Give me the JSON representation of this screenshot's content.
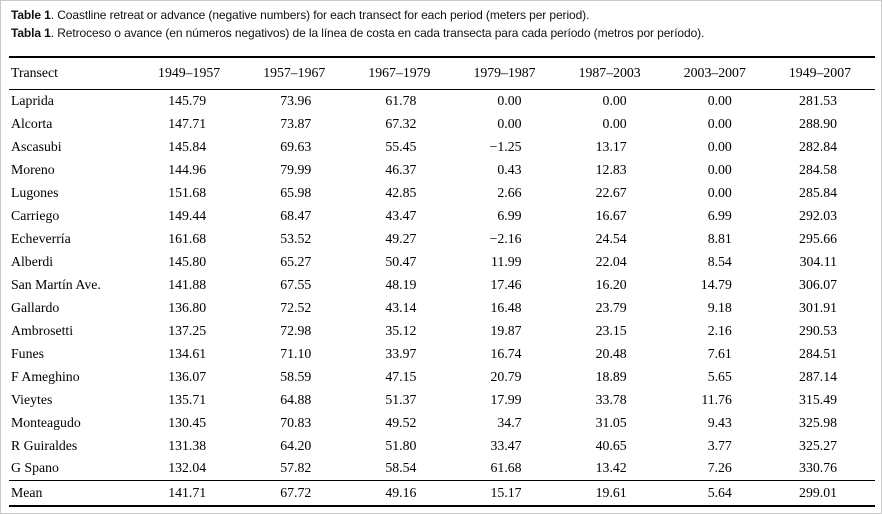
{
  "caption": {
    "en_label": "Table 1",
    "en_text": ". Coastline retreat or advance (negative numbers) for each transect for each period (meters per period).",
    "es_label": "Tabla 1",
    "es_text": ". Retroceso o avance (en números negativos) de la línea de costa en cada transecta para cada período (metros por período)."
  },
  "colors": {
    "text": "#1a1a1a",
    "rule": "#000000",
    "background": "#ffffff",
    "page_border": "#c9c9c9"
  },
  "chart_data": {
    "type": "table",
    "title": "Coastline retreat or advance (negative numbers) for each transect for each period (meters per period)",
    "columns": [
      "Transect",
      "1949–1957",
      "1957–1967",
      "1967–1979",
      "1979–1987",
      "1987–2003",
      "2003–2007",
      "1949–2007"
    ],
    "rows": [
      {
        "name": "Laprida",
        "values": [
          "145.79",
          "73.96",
          "61.78",
          "0.00",
          "0.00",
          "0.00",
          "281.53"
        ]
      },
      {
        "name": "Alcorta",
        "values": [
          "147.71",
          "73.87",
          "67.32",
          "0.00",
          "0.00",
          "0.00",
          "288.90"
        ]
      },
      {
        "name": "Ascasubi",
        "values": [
          "145.84",
          "69.63",
          "55.45",
          "−1.25",
          "13.17",
          "0.00",
          "282.84"
        ]
      },
      {
        "name": "Moreno",
        "values": [
          "144.96",
          "79.99",
          "46.37",
          "0.43",
          "12.83",
          "0.00",
          "284.58"
        ]
      },
      {
        "name": "Lugones",
        "values": [
          "151.68",
          "65.98",
          "42.85",
          "2.66",
          "22.67",
          "0.00",
          "285.84"
        ]
      },
      {
        "name": "Carriego",
        "values": [
          "149.44",
          "68.47",
          "43.47",
          "6.99",
          "16.67",
          "6.99",
          "292.03"
        ]
      },
      {
        "name": "Echeverría",
        "values": [
          "161.68",
          "53.52",
          "49.27",
          "−2.16",
          "24.54",
          "8.81",
          "295.66"
        ]
      },
      {
        "name": "Alberdi",
        "values": [
          "145.80",
          "65.27",
          "50.47",
          "11.99",
          "22.04",
          "8.54",
          "304.11"
        ]
      },
      {
        "name": "San Martín Ave.",
        "values": [
          "141.88",
          "67.55",
          "48.19",
          "17.46",
          "16.20",
          "14.79",
          "306.07"
        ]
      },
      {
        "name": "Gallardo",
        "values": [
          "136.80",
          "72.52",
          "43.14",
          "16.48",
          "23.79",
          "9.18",
          "301.91"
        ]
      },
      {
        "name": "Ambrosetti",
        "values": [
          "137.25",
          "72.98",
          "35.12",
          "19.87",
          "23.15",
          "2.16",
          "290.53"
        ]
      },
      {
        "name": "Funes",
        "values": [
          "134.61",
          "71.10",
          "33.97",
          "16.74",
          "20.48",
          "7.61",
          "284.51"
        ]
      },
      {
        "name": "F Ameghino",
        "values": [
          "136.07",
          "58.59",
          "47.15",
          "20.79",
          "18.89",
          "5.65",
          "287.14"
        ]
      },
      {
        "name": "Vieytes",
        "values": [
          "135.71",
          "64.88",
          "51.37",
          "17.99",
          "33.78",
          "11.76",
          "315.49"
        ]
      },
      {
        "name": "Monteagudo",
        "values": [
          "130.45",
          "70.83",
          "49.52",
          "34.7",
          "31.05",
          "9.43",
          "325.98"
        ]
      },
      {
        "name": "R Guiraldes",
        "values": [
          "131.38",
          "64.20",
          "51.80",
          "33.47",
          "40.65",
          "3.77",
          "325.27"
        ]
      },
      {
        "name": "G Spano",
        "values": [
          "132.04",
          "57.82",
          "58.54",
          "61.68",
          "13.42",
          "7.26",
          "330.76"
        ]
      }
    ],
    "mean_row": {
      "name": "Mean",
      "values": [
        "141.71",
        "67.72",
        "49.16",
        "15.17",
        "19.61",
        "5.64",
        "299.01"
      ]
    }
  }
}
